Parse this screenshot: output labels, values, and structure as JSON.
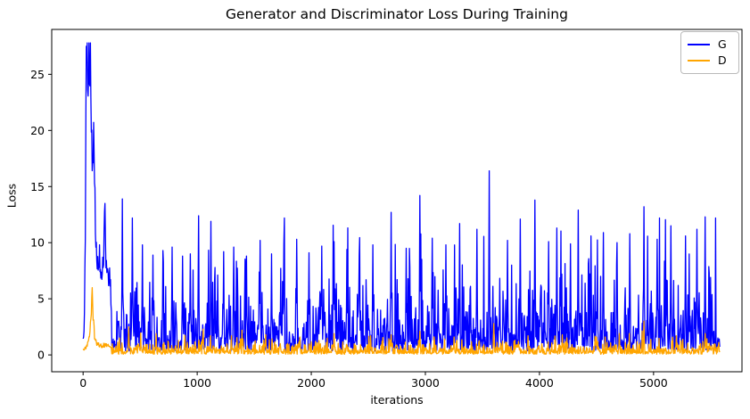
{
  "chart_data": {
    "type": "line",
    "title": "Generator and Discriminator Loss During Training",
    "xlabel": "iterations",
    "ylabel": "Loss",
    "xlim": [
      -275,
      5775
    ],
    "ylim": [
      -1.5,
      29.0
    ],
    "x_ticks": [
      0,
      1000,
      2000,
      3000,
      4000,
      5000
    ],
    "y_ticks": [
      0,
      5,
      10,
      15,
      20,
      25
    ],
    "grid": false,
    "x_max": 5580,
    "sample_step": 4,
    "seed": 20,
    "legend": {
      "position": "upper right",
      "entries": [
        {
          "label": "G",
          "color": "#0000ff"
        },
        {
          "label": "D",
          "color": "#ffa500"
        }
      ]
    },
    "series": [
      {
        "name": "G",
        "color": "#0000ff",
        "peak_value": 27.8,
        "initial_envelope": [
          [
            0,
            1.3
          ],
          [
            10,
            2.2
          ],
          [
            20,
            12
          ],
          [
            28,
            27.5
          ],
          [
            38,
            26.3
          ],
          [
            50,
            27.8
          ],
          [
            62,
            27.4
          ],
          [
            72,
            23.5
          ],
          [
            82,
            19
          ],
          [
            92,
            17.5
          ],
          [
            100,
            13
          ],
          [
            110,
            11.5
          ],
          [
            125,
            8.5
          ],
          [
            140,
            9.5
          ],
          [
            155,
            6
          ],
          [
            170,
            7
          ],
          [
            190,
            13.5
          ],
          [
            205,
            8
          ],
          [
            220,
            6
          ],
          [
            235,
            7
          ],
          [
            250,
            4.5
          ]
        ],
        "noise": {
          "base": 0.35,
          "scale": 1.7,
          "power": 1.12,
          "cap": 12.2,
          "min": 0.15
        },
        "spikes": [
          [
            28,
            27.5
          ],
          [
            52,
            27.8
          ],
          [
            190,
            13.5
          ],
          [
            345,
            13.9
          ],
          [
            430,
            12.2
          ],
          [
            520,
            9.8
          ],
          [
            610,
            8.9
          ],
          [
            700,
            9.3
          ],
          [
            780,
            9.6
          ],
          [
            870,
            8.8
          ],
          [
            940,
            9.0
          ],
          [
            1010,
            12.4
          ],
          [
            1120,
            11.9
          ],
          [
            1230,
            9.2
          ],
          [
            1320,
            9.6
          ],
          [
            1430,
            8.8
          ],
          [
            1550,
            10.2
          ],
          [
            1650,
            9.0
          ],
          [
            1760,
            9.9
          ],
          [
            1870,
            10.3
          ],
          [
            1980,
            9.1
          ],
          [
            2090,
            9.7
          ],
          [
            2200,
            10.1
          ],
          [
            2310,
            9.4
          ],
          [
            2420,
            8.9
          ],
          [
            2540,
            9.8
          ],
          [
            2700,
            12.7
          ],
          [
            2830,
            9.5
          ],
          [
            2950,
            14.2
          ],
          [
            3060,
            10.4
          ],
          [
            3180,
            9.8
          ],
          [
            3300,
            11.7
          ],
          [
            3450,
            11.2
          ],
          [
            3560,
            16.4
          ],
          [
            3720,
            10.2
          ],
          [
            3830,
            12.1
          ],
          [
            3960,
            13.8
          ],
          [
            4080,
            10.1
          ],
          [
            4150,
            11.3
          ],
          [
            4270,
            9.9
          ],
          [
            4340,
            12.9
          ],
          [
            4450,
            10.6
          ],
          [
            4560,
            10.9
          ],
          [
            4680,
            10.0
          ],
          [
            4790,
            10.8
          ],
          [
            4914,
            13.2
          ],
          [
            5030,
            10.3
          ],
          [
            5150,
            11.5
          ],
          [
            5280,
            10.6
          ],
          [
            5380,
            11.2
          ],
          [
            5450,
            12.3
          ]
        ]
      },
      {
        "name": "D",
        "color": "#ffa500",
        "peak_value": 6.0,
        "initial_envelope": [
          [
            0,
            0.45
          ],
          [
            30,
            0.7
          ],
          [
            55,
            1.5
          ],
          [
            70,
            3.0
          ],
          [
            80,
            6.0
          ],
          [
            88,
            3.2
          ],
          [
            100,
            1.6
          ],
          [
            120,
            1.0
          ],
          [
            150,
            0.8
          ],
          [
            200,
            0.9
          ],
          [
            250,
            0.6
          ]
        ],
        "noise": {
          "base": 0.06,
          "scale": 0.38,
          "power": 0.95,
          "cap": 2.2,
          "min": 0.03
        },
        "spikes": [
          [
            80,
            6.0
          ],
          [
            400,
            2.5
          ],
          [
            640,
            1.9
          ],
          [
            1050,
            2.3
          ],
          [
            1300,
            1.7
          ],
          [
            1600,
            1.8
          ],
          [
            1900,
            1.6
          ],
          [
            2200,
            1.9
          ],
          [
            2520,
            1.7
          ],
          [
            2700,
            1.8
          ],
          [
            2950,
            2.1
          ],
          [
            3250,
            1.6
          ],
          [
            3600,
            2.8
          ],
          [
            3900,
            1.7
          ],
          [
            4200,
            1.8
          ],
          [
            4500,
            1.6
          ],
          [
            4700,
            1.9
          ],
          [
            4914,
            3.0
          ],
          [
            5200,
            1.7
          ],
          [
            5450,
            1.9
          ]
        ]
      }
    ]
  }
}
